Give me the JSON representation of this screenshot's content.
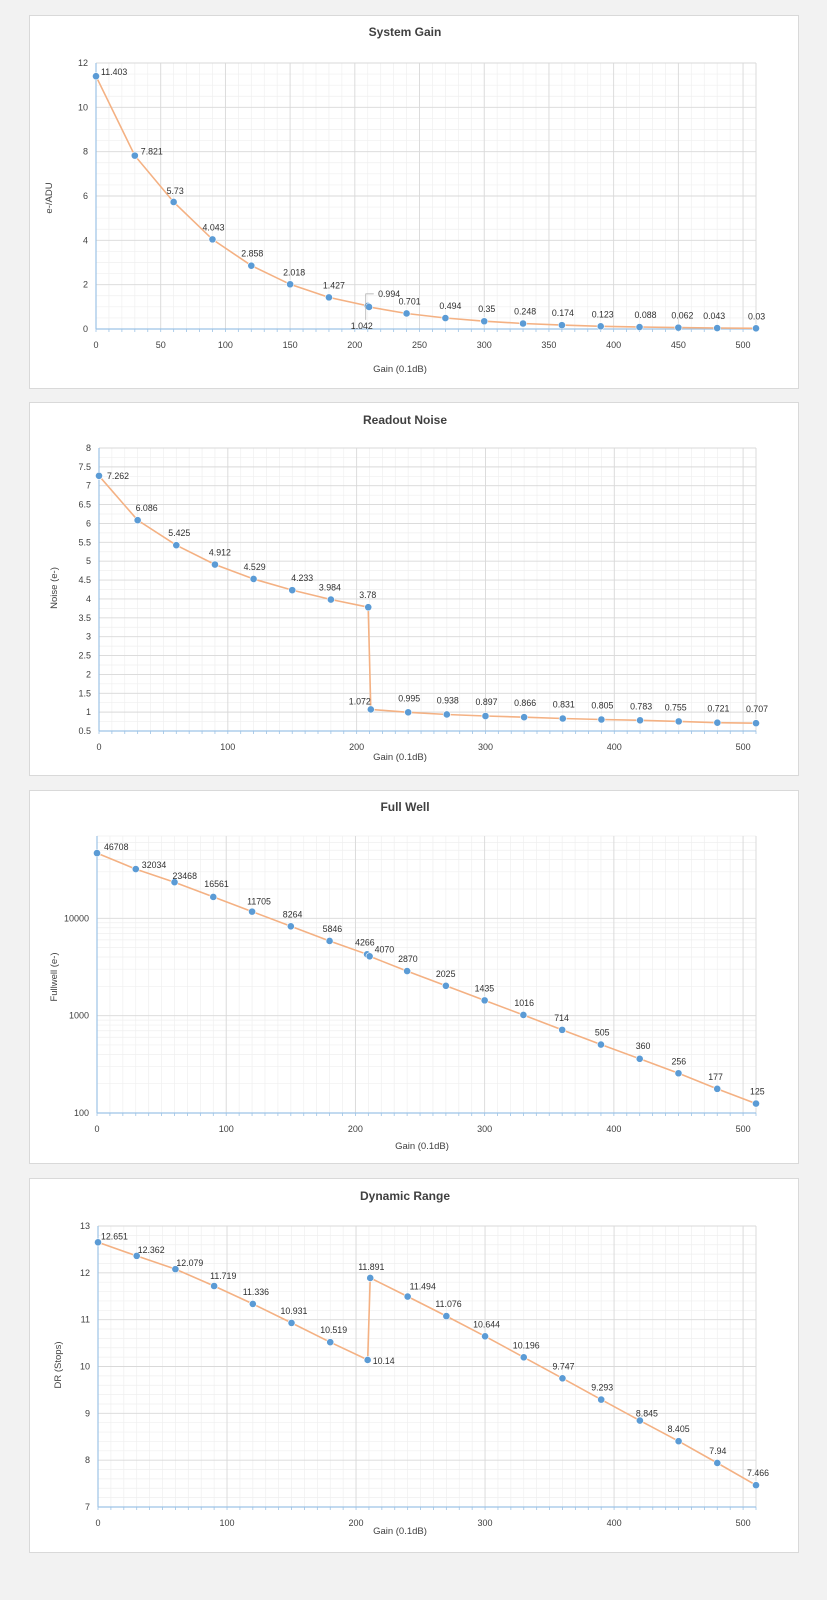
{
  "charts": [
    {
      "title": "System Gain",
      "xlabel": "Gain (0.1dB)",
      "ylabel": "e-/ADU",
      "xticks": [
        "0",
        "50",
        "100",
        "150",
        "200",
        "250",
        "300",
        "350",
        "400",
        "450",
        "500"
      ],
      "yticks": [
        "0",
        "2",
        "4",
        "6",
        "8",
        "10",
        "12"
      ],
      "labels": [
        "11.403",
        "7.821",
        "5.73",
        "4.043",
        "2.858",
        "2.018",
        "1.427",
        "1.042",
        "0.994",
        "0.701",
        "0.494",
        "0.35",
        "0.248",
        "0.174",
        "0.123",
        "0.088",
        "0.062",
        "0.043",
        "0.03"
      ]
    },
    {
      "title": "Readout Noise",
      "xlabel": "Gain (0.1dB)",
      "ylabel": "Noise (e-)",
      "xticks": [
        "0",
        "100",
        "200",
        "300",
        "400",
        "500"
      ],
      "yticks": [
        "0.5",
        "1",
        "1.5",
        "2",
        "2.5",
        "3",
        "3.5",
        "4",
        "4.5",
        "5",
        "5.5",
        "6",
        "6.5",
        "7",
        "7.5",
        "8"
      ],
      "labels": [
        "7.262",
        "6.086",
        "5.425",
        "4.912",
        "4.529",
        "4.233",
        "3.984",
        "3.78",
        "1.072",
        "0.995",
        "0.938",
        "0.897",
        "0.866",
        "0.831",
        "0.805",
        "0.783",
        "0.755",
        "0.721",
        "0.707"
      ]
    },
    {
      "title": "Full Well",
      "xlabel": "Gain (0.1dB)",
      "ylabel": "Fullwell (e-)",
      "xticks": [
        "0",
        "100",
        "200",
        "300",
        "400",
        "500"
      ],
      "yticks": [
        "100",
        "1000",
        "10000"
      ],
      "labels": [
        "46708",
        "32034",
        "23468",
        "16561",
        "11705",
        "8264",
        "5846",
        "4266",
        "4070",
        "2870",
        "2025",
        "1435",
        "1016",
        "714",
        "505",
        "360",
        "256",
        "177",
        "125"
      ]
    },
    {
      "title": "Dynamic Range",
      "xlabel": "Gain (0.1dB)",
      "ylabel": "DR (Stops)",
      "xticks": [
        "0",
        "100",
        "200",
        "300",
        "400",
        "500"
      ],
      "yticks": [
        "7",
        "8",
        "9",
        "10",
        "11",
        "12",
        "13"
      ],
      "labels": [
        "12.651",
        "12.362",
        "12.079",
        "11.719",
        "11.336",
        "10.931",
        "10.519",
        "10.14",
        "11.891",
        "11.494",
        "11.076",
        "10.644",
        "10.196",
        "9.747",
        "9.293",
        "8.845",
        "8.405",
        "7.94",
        "7.466"
      ]
    }
  ],
  "chart_data": [
    {
      "type": "line",
      "title": "System Gain",
      "xlabel": "Gain (0.1dB)",
      "ylabel": "e-/ADU",
      "xlim": [
        0,
        510
      ],
      "ylim": [
        0,
        12
      ],
      "yscale": "linear",
      "grid": true,
      "x": [
        0,
        30,
        60,
        90,
        120,
        150,
        180,
        210,
        211,
        240,
        270,
        300,
        330,
        360,
        390,
        420,
        450,
        480,
        510
      ],
      "y": [
        11.403,
        7.821,
        5.73,
        4.043,
        2.858,
        2.018,
        1.427,
        1.042,
        0.994,
        0.701,
        0.494,
        0.35,
        0.248,
        0.174,
        0.123,
        0.088,
        0.062,
        0.043,
        0.03
      ]
    },
    {
      "type": "line",
      "title": "Readout Noise",
      "xlabel": "Gain (0.1dB)",
      "ylabel": "Noise (e-)",
      "xlim": [
        0,
        510
      ],
      "ylim": [
        0.5,
        8
      ],
      "yscale": "linear",
      "grid": true,
      "x": [
        0,
        30,
        60,
        90,
        120,
        150,
        180,
        209,
        211,
        240,
        270,
        300,
        330,
        360,
        390,
        420,
        450,
        480,
        510
      ],
      "y": [
        7.262,
        6.086,
        5.425,
        4.912,
        4.529,
        4.233,
        3.984,
        3.78,
        1.072,
        0.995,
        0.938,
        0.897,
        0.866,
        0.831,
        0.805,
        0.783,
        0.755,
        0.721,
        0.707
      ]
    },
    {
      "type": "line",
      "title": "Full Well",
      "xlabel": "Gain (0.1dB)",
      "ylabel": "Fullwell (e-)",
      "xlim": [
        0,
        510
      ],
      "ylim": [
        100,
        70000
      ],
      "yscale": "log",
      "grid": true,
      "x": [
        0,
        30,
        60,
        90,
        120,
        150,
        180,
        209,
        211,
        240,
        270,
        300,
        330,
        360,
        390,
        420,
        450,
        480,
        510
      ],
      "y": [
        46708,
        32034,
        23468,
        16561,
        11705,
        8264,
        5846,
        4266,
        4070,
        2870,
        2025,
        1435,
        1016,
        714,
        505,
        360,
        256,
        177,
        125
      ]
    },
    {
      "type": "line",
      "title": "Dynamic Range",
      "xlabel": "Gain (0.1dB)",
      "ylabel": "DR (Stops)",
      "xlim": [
        0,
        510
      ],
      "ylim": [
        7,
        13
      ],
      "yscale": "linear",
      "grid": true,
      "x": [
        0,
        30,
        60,
        90,
        120,
        150,
        180,
        209,
        211,
        240,
        270,
        300,
        330,
        360,
        390,
        420,
        450,
        480,
        510
      ],
      "y": [
        12.651,
        12.362,
        12.079,
        11.719,
        11.336,
        10.931,
        10.519,
        10.14,
        11.891,
        11.494,
        11.076,
        10.644,
        10.196,
        9.747,
        9.293,
        8.845,
        8.405,
        7.94,
        7.466
      ]
    }
  ],
  "colors": {
    "line": "#f4b183",
    "marker": "#5b9bd5",
    "grid_major": "#d9d9d9",
    "grid_minor": "#efefef",
    "axis": "#9dc3e6"
  }
}
